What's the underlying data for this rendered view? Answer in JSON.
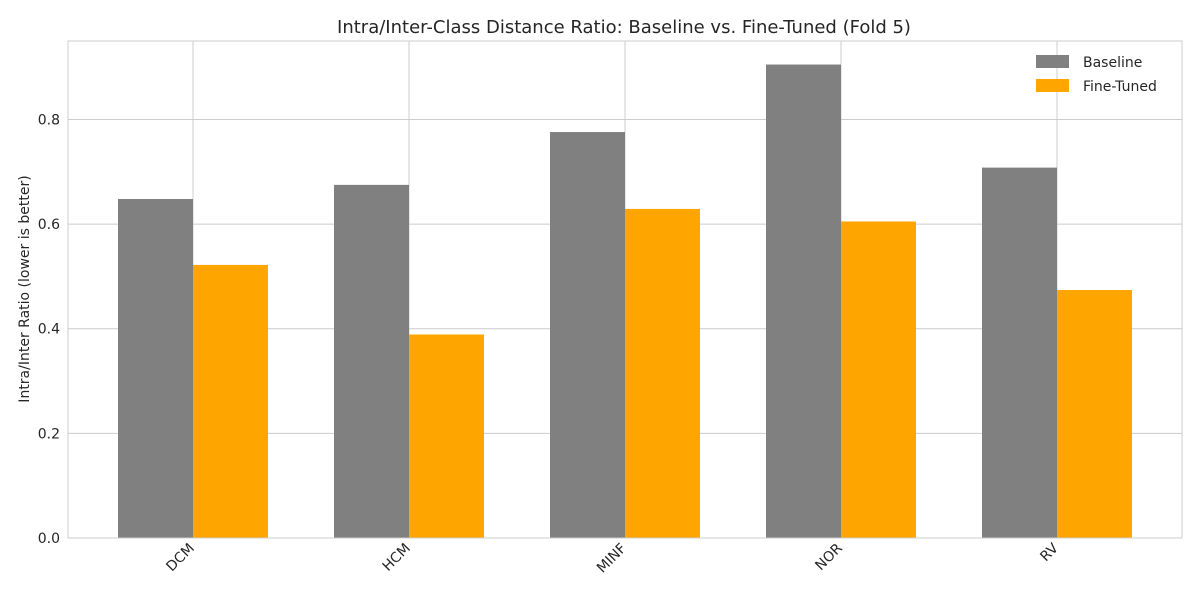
{
  "chart_data": {
    "type": "bar",
    "title": "Intra/Inter-Class Distance Ratio: Baseline vs. Fine-Tuned (Fold 5)",
    "xlabel": "",
    "ylabel": "Intra/Inter Ratio (lower is better)",
    "categories": [
      "DCM",
      "HCM",
      "MINF",
      "NOR",
      "RV"
    ],
    "series": [
      {
        "name": "Baseline",
        "color": "#808080",
        "values": [
          0.648,
          0.675,
          0.776,
          0.905,
          0.708
        ]
      },
      {
        "name": "Fine-Tuned",
        "color": "#FFA500",
        "values": [
          0.522,
          0.389,
          0.629,
          0.605,
          0.474
        ]
      }
    ],
    "ylim": [
      0,
      0.95
    ],
    "yticks": [
      "0.0",
      "0.2",
      "0.4",
      "0.6",
      "0.8"
    ],
    "grid": true,
    "legend_position": "top-right"
  }
}
